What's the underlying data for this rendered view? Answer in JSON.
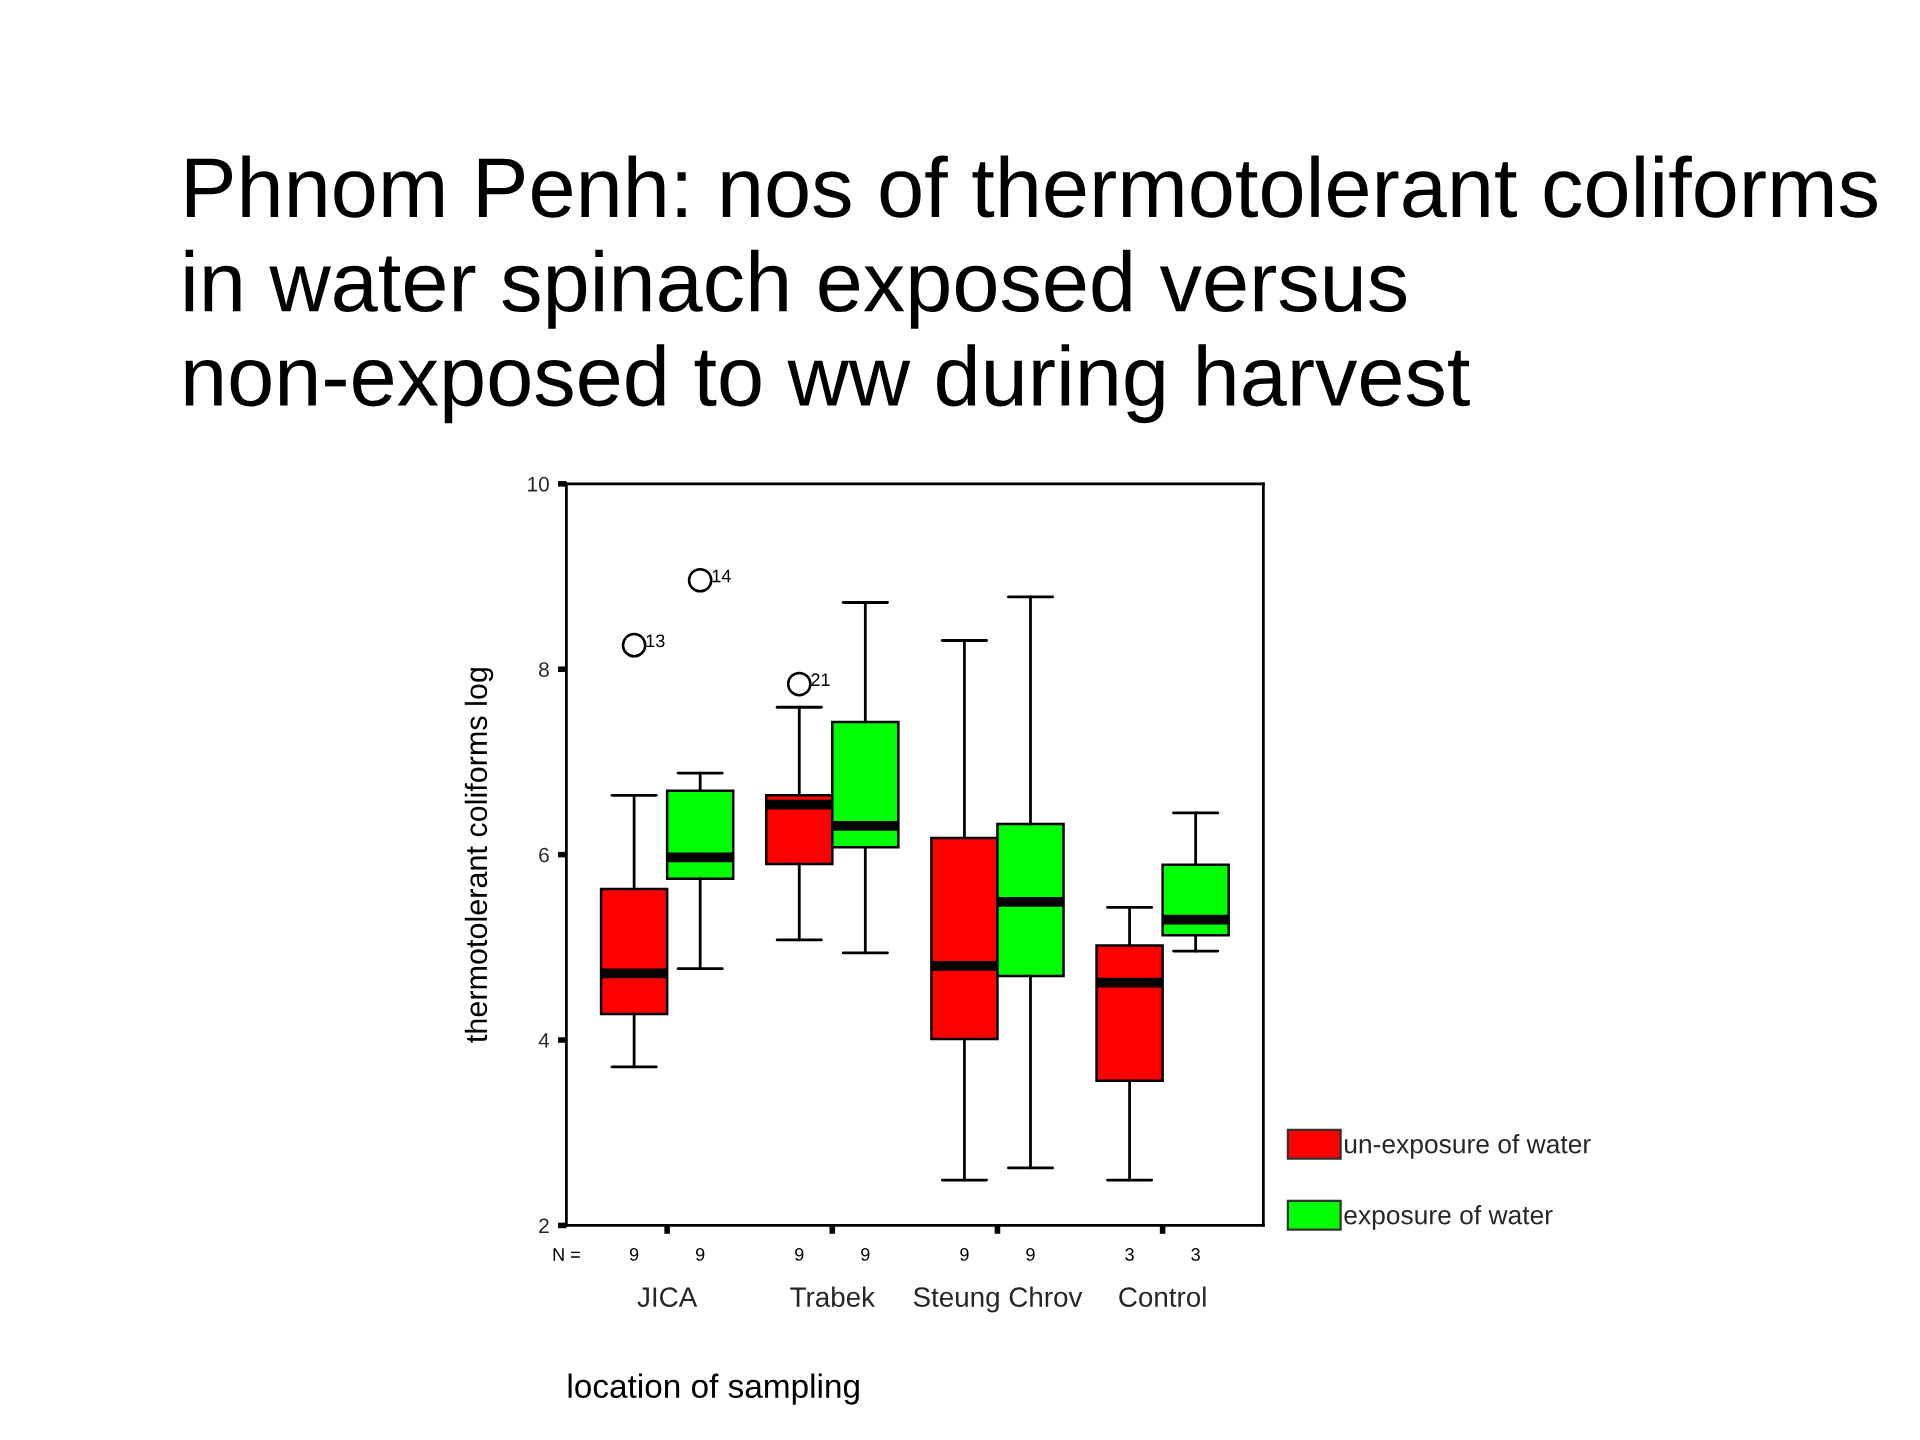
{
  "chart_data": {
    "type": "box",
    "title": "Phnom Penh: nos of thermotolerant coliforms in water spinach exposed versus non-exposed to ww during harvest",
    "xlabel": "location of sampling",
    "ylabel": "thermotolerant coliforms log",
    "categories": [
      "JICA",
      "Trabek",
      "Steung Chrov",
      "Control"
    ],
    "series": [
      {
        "name": "un-exposure of water",
        "color": "#ff0000",
        "value_labels": [
          "9",
          "9",
          "9",
          "3"
        ],
        "boxes": [
          {
            "low": 3.71,
            "q1": 4.28,
            "median": 4.72,
            "q3": 5.63,
            "high": 6.64,
            "outliers": [
              8.26
            ]
          },
          {
            "low": 5.08,
            "q1": 5.9,
            "median": 6.54,
            "q3": 6.64,
            "high": 7.59,
            "outliers": [
              7.84
            ]
          },
          {
            "low": 2.49,
            "q1": 4.01,
            "median": 4.8,
            "q3": 6.18,
            "high": 8.31
          },
          {
            "low": 2.49,
            "q1": 3.56,
            "median": 4.62,
            "q3": 5.02,
            "high": 5.43
          }
        ]
      },
      {
        "name": "exposure of water",
        "color": "#00ff00",
        "value_labels": [
          "9",
          "9",
          "9",
          "3"
        ],
        "boxes": [
          {
            "low": 4.77,
            "q1": 5.74,
            "median": 5.97,
            "q3": 6.69,
            "high": 6.88,
            "outliers": [
              8.96
            ]
          },
          {
            "low": 4.94,
            "q1": 6.08,
            "median": 6.31,
            "q3": 7.43,
            "high": 8.72
          },
          {
            "low": 2.62,
            "q1": 4.69,
            "median": 5.49,
            "q3": 6.33,
            "high": 8.78
          },
          {
            "low": 4.96,
            "q1": 5.13,
            "median": 5.3,
            "q3": 5.89,
            "high": 6.45
          }
        ]
      }
    ],
    "ylim": [
      2,
      10
    ],
    "yticks": [
      2,
      4,
      6,
      8,
      10
    ],
    "legend": "bottom right",
    "annotations": [
      "13",
      "21",
      "14",
      "N ="
    ]
  }
}
